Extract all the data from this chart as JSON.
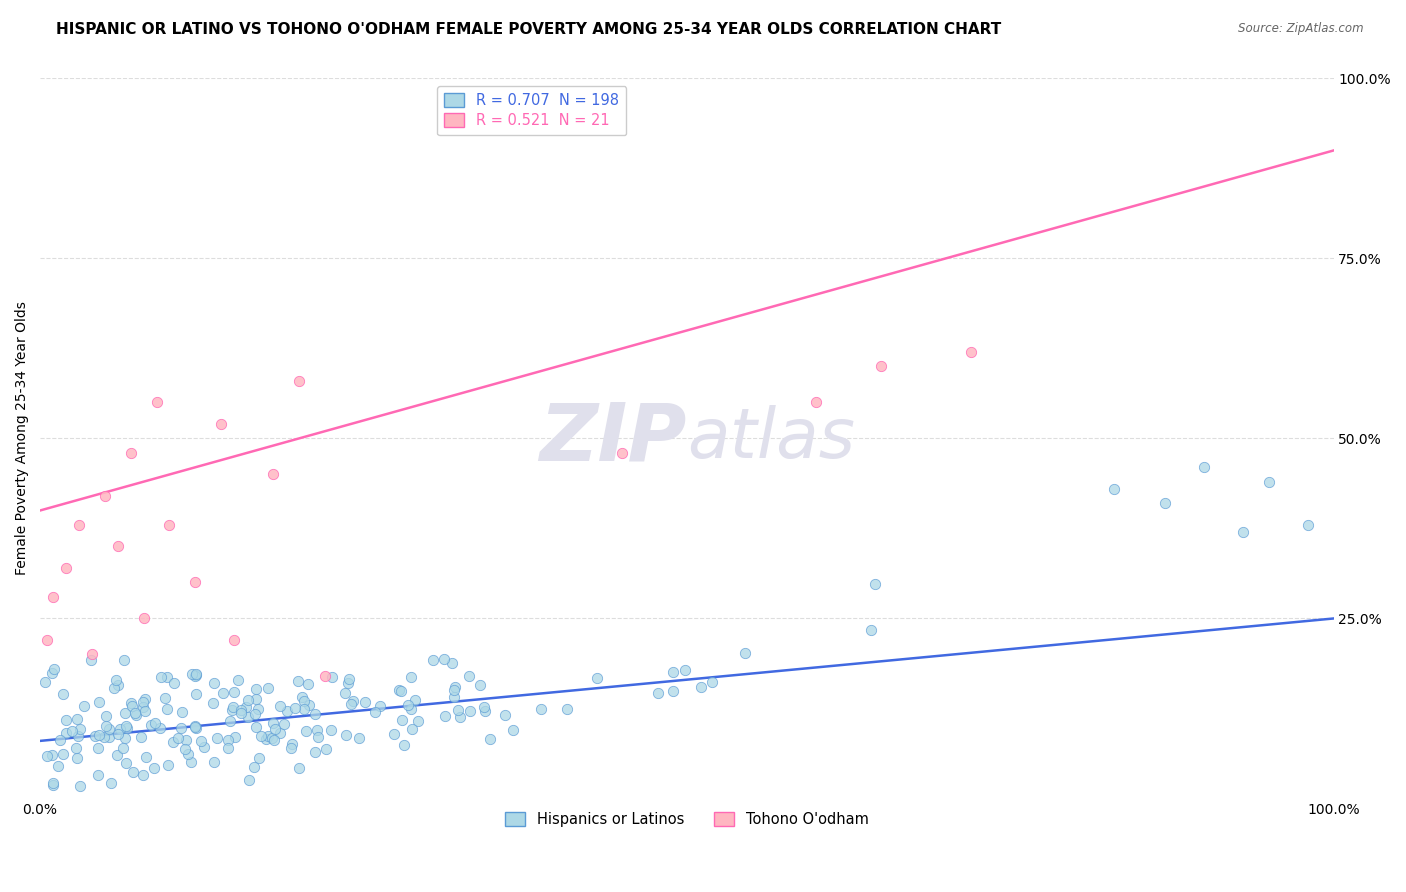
{
  "title": "HISPANIC OR LATINO VS TOHONO O'ODHAM FEMALE POVERTY AMONG 25-34 YEAR OLDS CORRELATION CHART",
  "source": "Source: ZipAtlas.com",
  "ylabel": "Female Poverty Among 25-34 Year Olds",
  "watermark_zip": "ZIP",
  "watermark_atlas": "atlas",
  "blue_R": 0.707,
  "blue_N": 198,
  "pink_R": 0.521,
  "pink_N": 21,
  "blue_color": "#ADD8E6",
  "blue_edge": "#5B9BD5",
  "pink_color": "#FFB6C1",
  "pink_edge": "#FF69B4",
  "blue_line_color": "#4169E1",
  "pink_line_color": "#FF69B4",
  "legend_label_blue": "Hispanics or Latinos",
  "legend_label_pink": "Tohono O'odham",
  "xlim": [
    0,
    1
  ],
  "ylim": [
    0,
    1
  ],
  "ytick_positions": [
    0.25,
    0.5,
    0.75,
    1.0
  ],
  "ytick_labels": [
    "25.0%",
    "50.0%",
    "75.0%",
    "100.0%"
  ],
  "grid_color": "#DDDDDD",
  "background_color": "#FFFFFF",
  "title_fontsize": 11,
  "axis_fontsize": 10,
  "watermark_color": "#E0E0EC",
  "seed": 42
}
